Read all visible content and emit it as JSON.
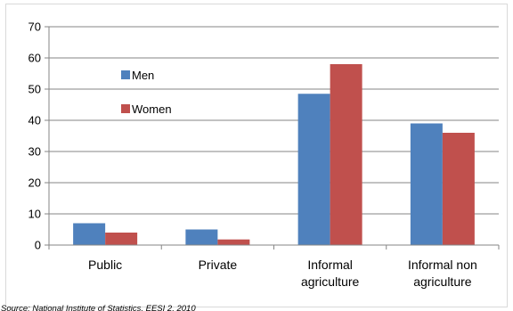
{
  "chart_data": {
    "type": "bar",
    "categories": [
      [
        "Public"
      ],
      [
        "Private"
      ],
      [
        "Informal",
        "agriculture"
      ],
      [
        "Informal non",
        "agriculture"
      ]
    ],
    "series": [
      {
        "name": "Men",
        "color": "#4F81BD",
        "values": [
          7,
          5,
          48.5,
          39
        ]
      },
      {
        "name": "Women",
        "color": "#C0504D",
        "values": [
          4,
          1.8,
          58,
          36
        ]
      }
    ],
    "ylim": [
      0,
      70
    ],
    "yticks": [
      0,
      10,
      20,
      30,
      40,
      50,
      60,
      70
    ],
    "grid": true,
    "legend_position": "top-left inside",
    "source": "Source: National Institute of Statistics, EESI 2, 2010"
  }
}
